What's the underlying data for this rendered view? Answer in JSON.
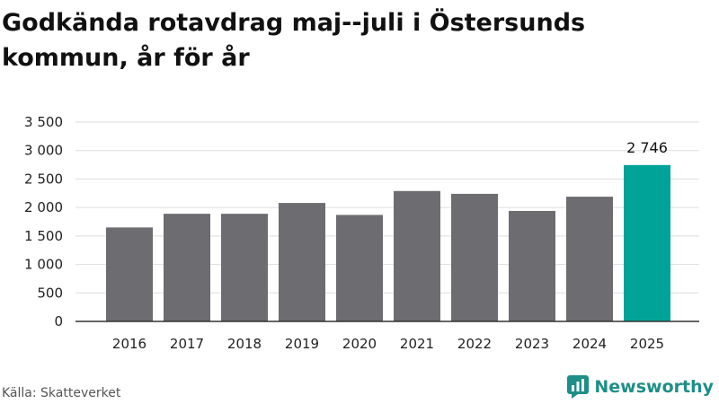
{
  "title": "Godkända rotavdrag maj--juli i Östersunds kommun, år för år",
  "source": "Källa: Skatteverket",
  "logo_text": "Newsworthy",
  "colors": {
    "bar": "#6d6c71",
    "highlight": "#00a398",
    "grid": "#dddddd",
    "logo": "#1e8f87"
  },
  "chart_data": {
    "type": "bar",
    "title": "Godkända rotavdrag maj--juli i Östersunds kommun, år för år",
    "xlabel": "",
    "ylabel": "",
    "categories": [
      "2016",
      "2017",
      "2018",
      "2019",
      "2020",
      "2021",
      "2022",
      "2023",
      "2024",
      "2025"
    ],
    "values": [
      1650,
      1890,
      1890,
      2080,
      1870,
      2290,
      2240,
      1940,
      2190,
      2746
    ],
    "ylim": [
      0,
      3500
    ],
    "yticks": [
      0,
      500,
      1000,
      1500,
      2000,
      2500,
      3000,
      3500
    ],
    "ytick_labels": [
      "0",
      "500",
      "1 000",
      "1 500",
      "2 000",
      "2 500",
      "3 000",
      "3 500"
    ],
    "grid": true,
    "highlight_index": 9,
    "data_labels": [
      {
        "index": 9,
        "text": "2 746"
      }
    ]
  }
}
